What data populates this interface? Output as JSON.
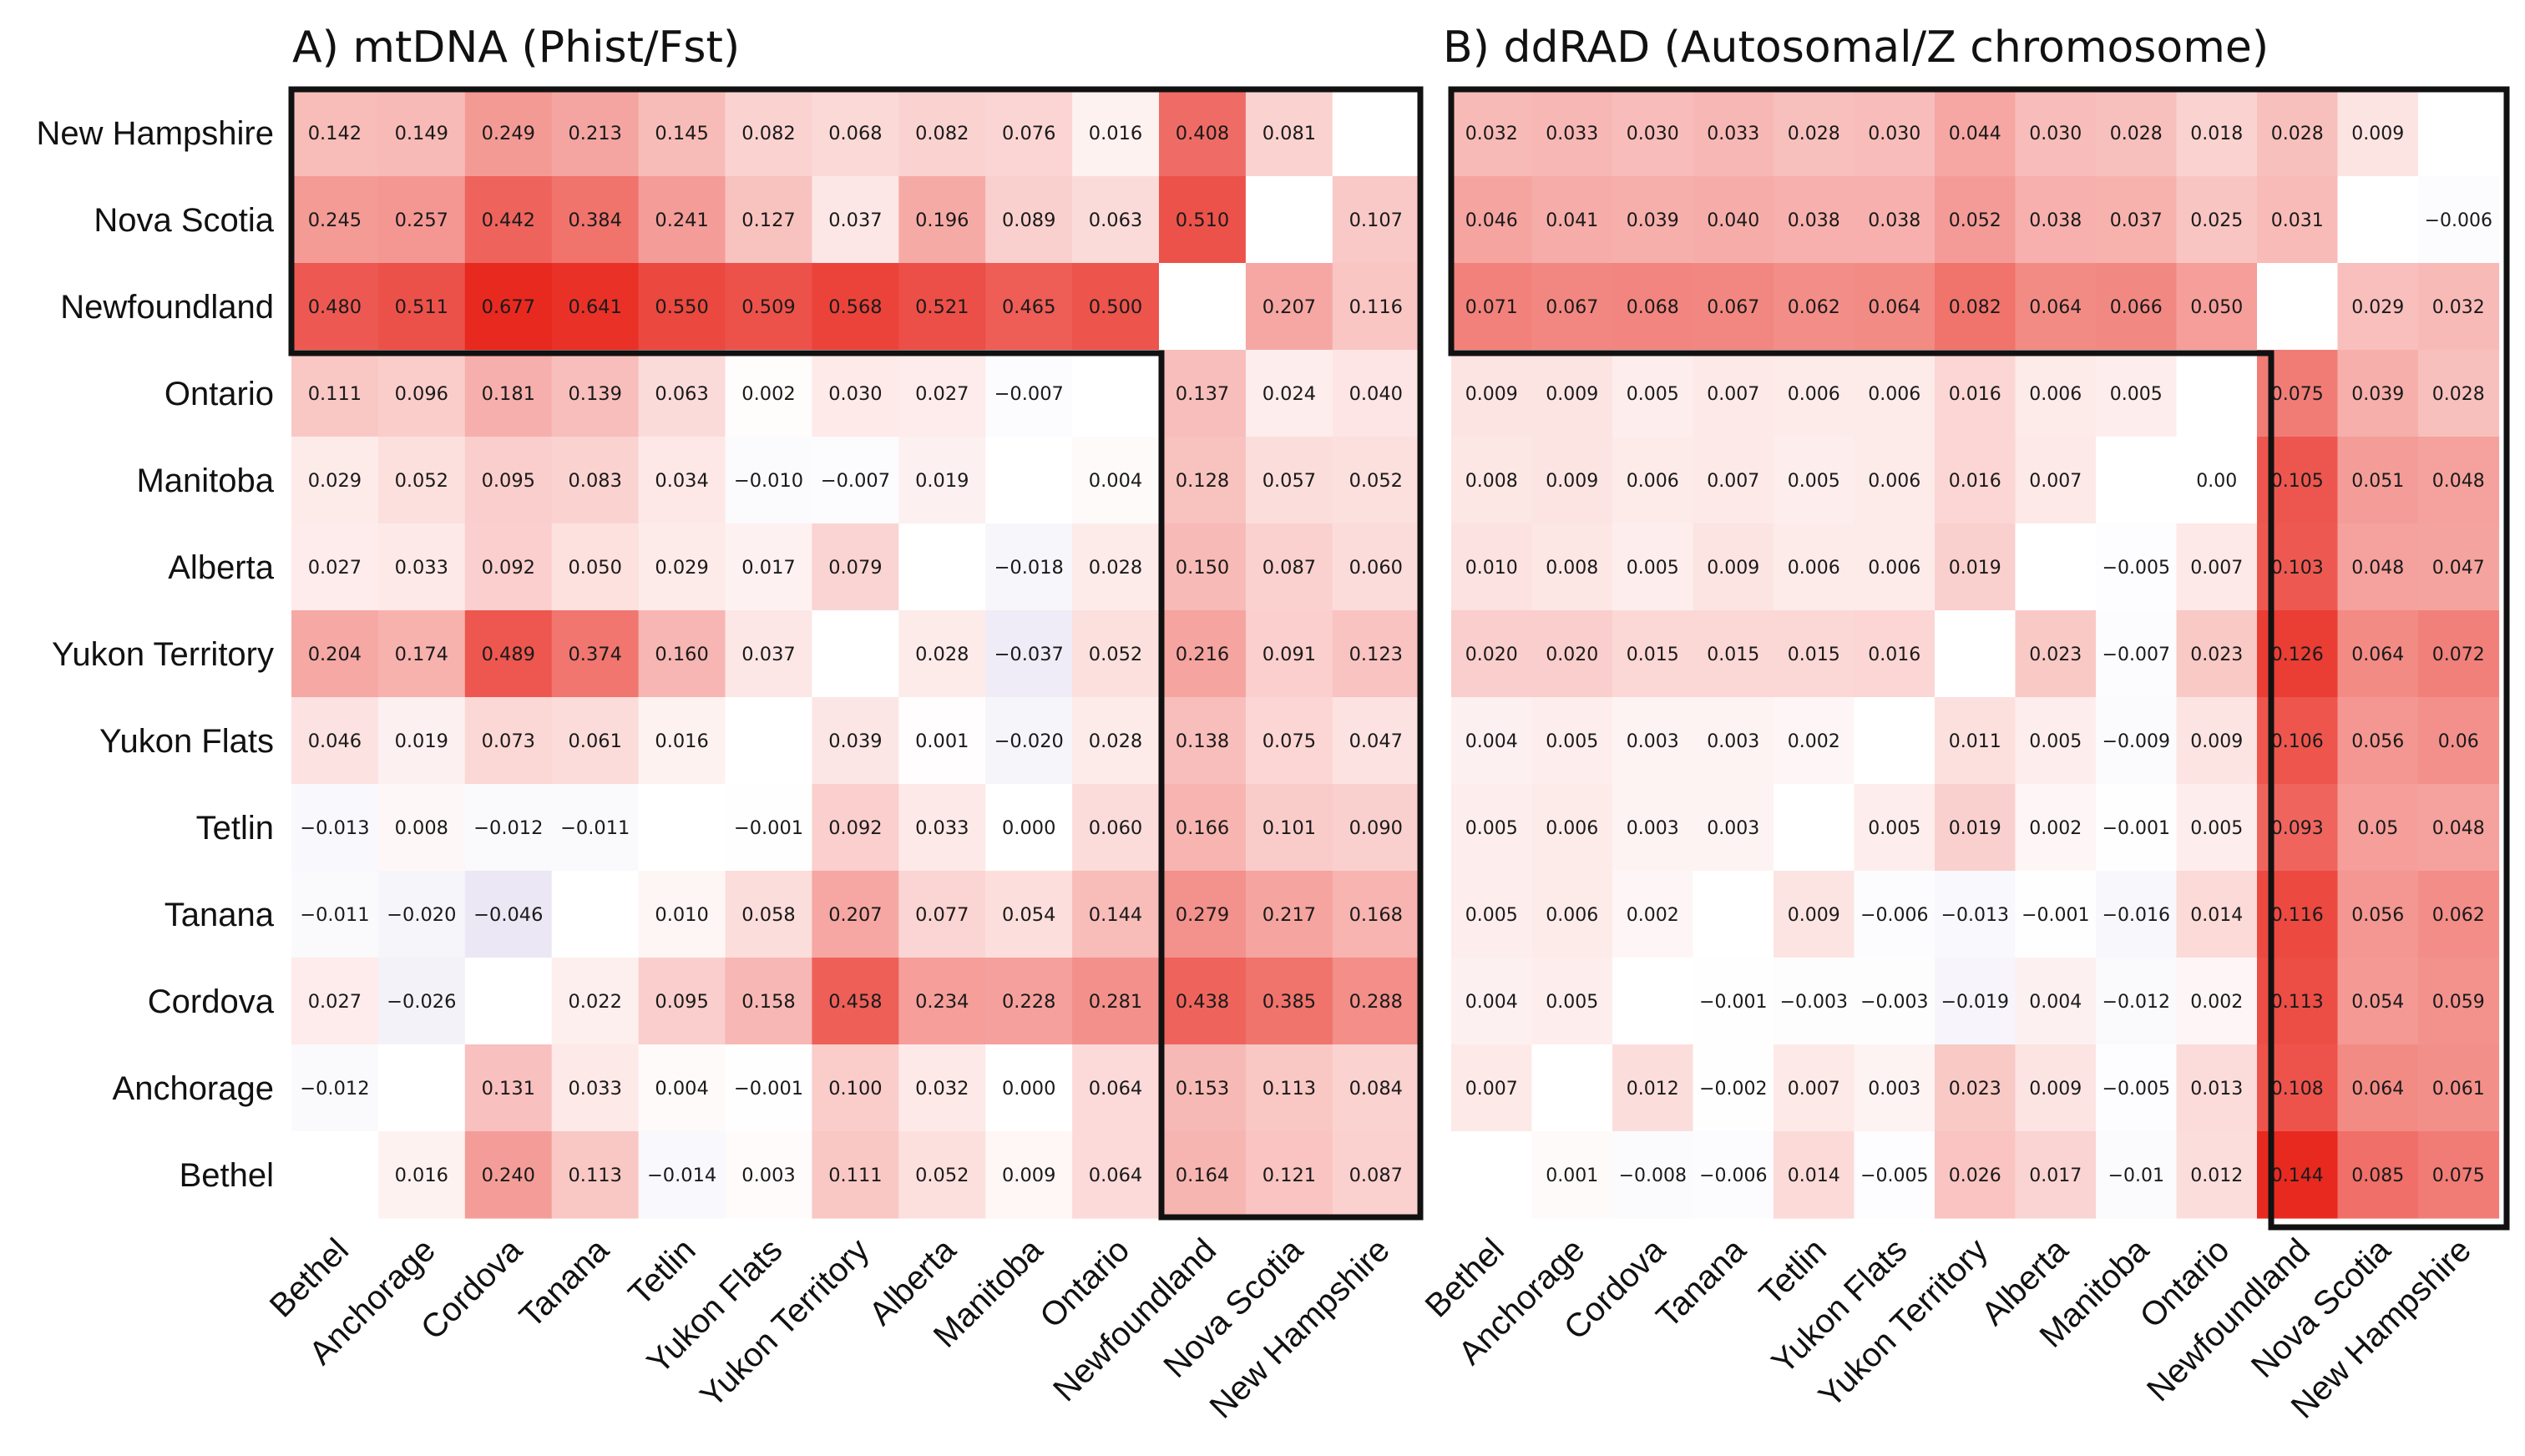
{
  "chart_data": [
    {
      "type": "heatmap",
      "title": "A)  mtDNA (Phist/Fst)",
      "row_labels": [
        "New Hampshire",
        "Nova Scotia",
        "Newfoundland",
        "Ontario",
        "Manitoba",
        "Alberta",
        "Yukon Territory",
        "Yukon Flats",
        "Tetlin",
        "Tanana",
        "Cordova",
        "Anchorage",
        "Bethel"
      ],
      "col_labels": [
        "Bethel",
        "Anchorage",
        "Cordova",
        "Tanana",
        "Tetlin",
        "Yukon Flats",
        "Yukon Territory",
        "Alberta",
        "Manitoba",
        "Ontario",
        "Newfoundland",
        "Nova Scotia",
        "New Hampshire"
      ],
      "cells": [
        [
          "0.142",
          "0.149",
          "0.249",
          "0.213",
          "0.145",
          "0.082",
          "0.068",
          "0.082",
          "0.076",
          "0.016",
          "0.408",
          "0.081",
          ""
        ],
        [
          "0.245",
          "0.257",
          "0.442",
          "0.384",
          "0.241",
          "0.127",
          "0.037",
          "0.196",
          "0.089",
          "0.063",
          "0.510",
          "",
          "0.107"
        ],
        [
          "0.480",
          "0.511",
          "0.677",
          "0.641",
          "0.550",
          "0.509",
          "0.568",
          "0.521",
          "0.465",
          "0.500",
          "",
          "0.207",
          "0.116"
        ],
        [
          "0.111",
          "0.096",
          "0.181",
          "0.139",
          "0.063",
          "0.002",
          "0.030",
          "0.027",
          "−0.007",
          "",
          "0.137",
          "0.024",
          "0.040"
        ],
        [
          "0.029",
          "0.052",
          "0.095",
          "0.083",
          "0.034",
          "−0.010",
          "−0.007",
          "0.019",
          "",
          "0.004",
          "0.128",
          "0.057",
          "0.052"
        ],
        [
          "0.027",
          "0.033",
          "0.092",
          "0.050",
          "0.029",
          "0.017",
          "0.079",
          "",
          "−0.018",
          "0.028",
          "0.150",
          "0.087",
          "0.060"
        ],
        [
          "0.204",
          "0.174",
          "0.489",
          "0.374",
          "0.160",
          "0.037",
          "",
          "0.028",
          "−0.037",
          "0.052",
          "0.216",
          "0.091",
          "0.123"
        ],
        [
          "0.046",
          "0.019",
          "0.073",
          "0.061",
          "0.016",
          "",
          "0.039",
          "0.001",
          "−0.020",
          "0.028",
          "0.138",
          "0.075",
          "0.047"
        ],
        [
          "−0.013",
          "0.008",
          "−0.012",
          "−0.011",
          "",
          "−0.001",
          "0.092",
          "0.033",
          "0.000",
          "0.060",
          "0.166",
          "0.101",
          "0.090"
        ],
        [
          "−0.011",
          "−0.020",
          "−0.046",
          "",
          "0.010",
          "0.058",
          "0.207",
          "0.077",
          "0.054",
          "0.144",
          "0.279",
          "0.217",
          "0.168"
        ],
        [
          "0.027",
          "−0.026",
          "",
          "0.022",
          "0.095",
          "0.158",
          "0.458",
          "0.234",
          "0.228",
          "0.281",
          "0.438",
          "0.385",
          "0.288"
        ],
        [
          "−0.012",
          "",
          "0.131",
          "0.033",
          "0.004",
          "−0.001",
          "0.100",
          "0.032",
          "0.000",
          "0.064",
          "0.153",
          "0.113",
          "0.084"
        ],
        [
          "",
          "0.016",
          "0.240",
          "0.113",
          "−0.014",
          "0.003",
          "0.111",
          "0.052",
          "0.009",
          "0.064",
          "0.164",
          "0.121",
          "0.087"
        ]
      ],
      "color_scale": {
        "negative": "#8e7bc4",
        "zero": "#ffffff",
        "positive": "#e8281e",
        "max_value": 0.68
      }
    },
    {
      "type": "heatmap",
      "title": "B)  ddRAD (Autosomal/Z chromosome)",
      "row_labels": [
        "New Hampshire",
        "Nova Scotia",
        "Newfoundland",
        "Ontario",
        "Manitoba",
        "Alberta",
        "Yukon Territory",
        "Yukon Flats",
        "Tetlin",
        "Tanana",
        "Cordova",
        "Anchorage",
        "Bethel"
      ],
      "col_labels": [
        "Bethel",
        "Anchorage",
        "Cordova",
        "Tanana",
        "Tetlin",
        "Yukon Flats",
        "Yukon Territory",
        "Alberta",
        "Manitoba",
        "Ontario",
        "Newfoundland",
        "Nova Scotia",
        "New Hampshire"
      ],
      "cells": [
        [
          "0.032",
          "0.033",
          "0.030",
          "0.033",
          "0.028",
          "0.030",
          "0.044",
          "0.030",
          "0.028",
          "0.018",
          "0.028",
          "0.009",
          ""
        ],
        [
          "0.046",
          "0.041",
          "0.039",
          "0.040",
          "0.038",
          "0.038",
          "0.052",
          "0.038",
          "0.037",
          "0.025",
          "0.031",
          "",
          "−0.006"
        ],
        [
          "0.071",
          "0.067",
          "0.068",
          "0.067",
          "0.062",
          "0.064",
          "0.082",
          "0.064",
          "0.066",
          "0.050",
          "",
          "0.029",
          "0.032"
        ],
        [
          "0.009",
          "0.009",
          "0.005",
          "0.007",
          "0.006",
          "0.006",
          "0.016",
          "0.006",
          "0.005",
          "",
          "0.075",
          "0.039",
          "0.028"
        ],
        [
          "0.008",
          "0.009",
          "0.006",
          "0.007",
          "0.005",
          "0.006",
          "0.016",
          "0.007",
          "",
          "0.00",
          "0.105",
          "0.051",
          "0.048"
        ],
        [
          "0.010",
          "0.008",
          "0.005",
          "0.009",
          "0.006",
          "0.006",
          "0.019",
          "",
          "−0.005",
          "0.007",
          "0.103",
          "0.048",
          "0.047"
        ],
        [
          "0.020",
          "0.020",
          "0.015",
          "0.015",
          "0.015",
          "0.016",
          "",
          "0.023",
          "−0.007",
          "0.023",
          "0.126",
          "0.064",
          "0.072"
        ],
        [
          "0.004",
          "0.005",
          "0.003",
          "0.003",
          "0.002",
          "",
          "0.011",
          "0.005",
          "−0.009",
          "0.009",
          "0.106",
          "0.056",
          "0.06"
        ],
        [
          "0.005",
          "0.006",
          "0.003",
          "0.003",
          "",
          "0.005",
          "0.019",
          "0.002",
          "−0.001",
          "0.005",
          "0.093",
          "0.05",
          "0.048"
        ],
        [
          "0.005",
          "0.006",
          "0.002",
          "",
          "0.009",
          "−0.006",
          "−0.013",
          "−0.001",
          "−0.016",
          "0.014",
          "0.116",
          "0.056",
          "0.062"
        ],
        [
          "0.004",
          "0.005",
          "",
          "−0.001",
          "−0.003",
          "−0.003",
          "−0.019",
          "0.004",
          "−0.012",
          "0.002",
          "0.113",
          "0.054",
          "0.059"
        ],
        [
          "0.007",
          "",
          "0.012",
          "−0.002",
          "0.007",
          "0.003",
          "0.023",
          "0.009",
          "−0.005",
          "0.013",
          "0.108",
          "0.064",
          "0.061"
        ],
        [
          "",
          "0.001",
          "−0.008",
          "−0.006",
          "0.014",
          "−0.005",
          "0.026",
          "0.017",
          "−0.01",
          "0.012",
          "0.144",
          "0.085",
          "0.075"
        ]
      ],
      "color_scale": {
        "negative": "#8e7bc4",
        "zero": "#ffffff",
        "positive": "#e8281e",
        "max_value": 0.145
      }
    }
  ]
}
